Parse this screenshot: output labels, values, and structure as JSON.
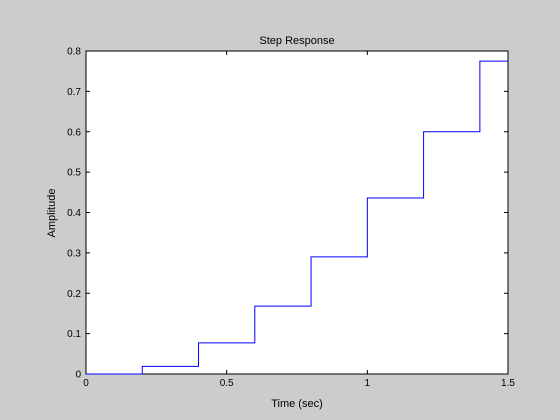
{
  "chart_data": {
    "type": "line",
    "title": "Step Response",
    "xlabel": "Time (sec)",
    "ylabel": "Amplitude",
    "xlim": [
      0,
      1.5
    ],
    "ylim": [
      0,
      0.8
    ],
    "xticks": [
      0,
      0.5,
      1,
      1.5
    ],
    "xtick_labels": [
      "0",
      "0.5",
      "1",
      "1.5"
    ],
    "yticks": [
      0,
      0.1,
      0.2,
      0.3,
      0.4,
      0.5,
      0.6,
      0.7,
      0.8
    ],
    "ytick_labels": [
      "0",
      "0.1",
      "0.2",
      "0.3",
      "0.4",
      "0.5",
      "0.6",
      "0.7",
      "0.8"
    ],
    "grid": false,
    "step": true,
    "series": [
      {
        "color": "#0000ff",
        "x": [
          0,
          0.2,
          0.4,
          0.6,
          0.8,
          1.0,
          1.2,
          1.4,
          1.5
        ],
        "y": [
          0,
          0.019,
          0.077,
          0.168,
          0.29,
          0.436,
          0.6,
          0.775,
          0.775
        ]
      }
    ]
  }
}
